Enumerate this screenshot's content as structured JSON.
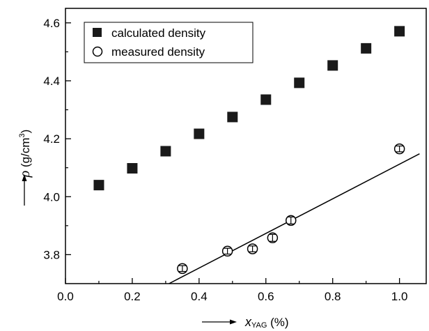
{
  "chart_data": {
    "type": "scatter",
    "xlabel": {
      "var": "x",
      "sub": "YAG",
      "unit": " (%)"
    },
    "ylabel": {
      "var": "ρ",
      "pre": " (g/cm",
      "sup": "3",
      "post": ")"
    },
    "xlim": [
      0.0,
      1.08
    ],
    "ylim": [
      3.7,
      4.65
    ],
    "xticks": [
      "0.0",
      "0.2",
      "0.4",
      "0.6",
      "0.8",
      "1.0"
    ],
    "yticks": [
      "3.8",
      "4.0",
      "4.2",
      "4.4",
      "4.6"
    ],
    "legend": {
      "position": "top-left"
    },
    "series": [
      {
        "name": "calculated density",
        "marker": "filled-square",
        "x": [
          0.1,
          0.2,
          0.3,
          0.4,
          0.5,
          0.6,
          0.7,
          0.8,
          0.9,
          1.0
        ],
        "y": [
          4.04,
          4.098,
          4.157,
          4.217,
          4.275,
          4.335,
          4.393,
          4.453,
          4.512,
          4.571
        ]
      },
      {
        "name": "measured density",
        "marker": "open-circle",
        "x": [
          0.35,
          0.485,
          0.56,
          0.62,
          0.675,
          1.0
        ],
        "y": [
          3.752,
          3.812,
          3.82,
          3.858,
          3.918,
          4.165
        ],
        "yerr": [
          0.01,
          0.01,
          0.01,
          0.012,
          0.012,
          0.01
        ]
      }
    ],
    "fit_line": {
      "x": [
        0.31,
        1.06
      ],
      "y": [
        3.7,
        4.148
      ]
    }
  }
}
